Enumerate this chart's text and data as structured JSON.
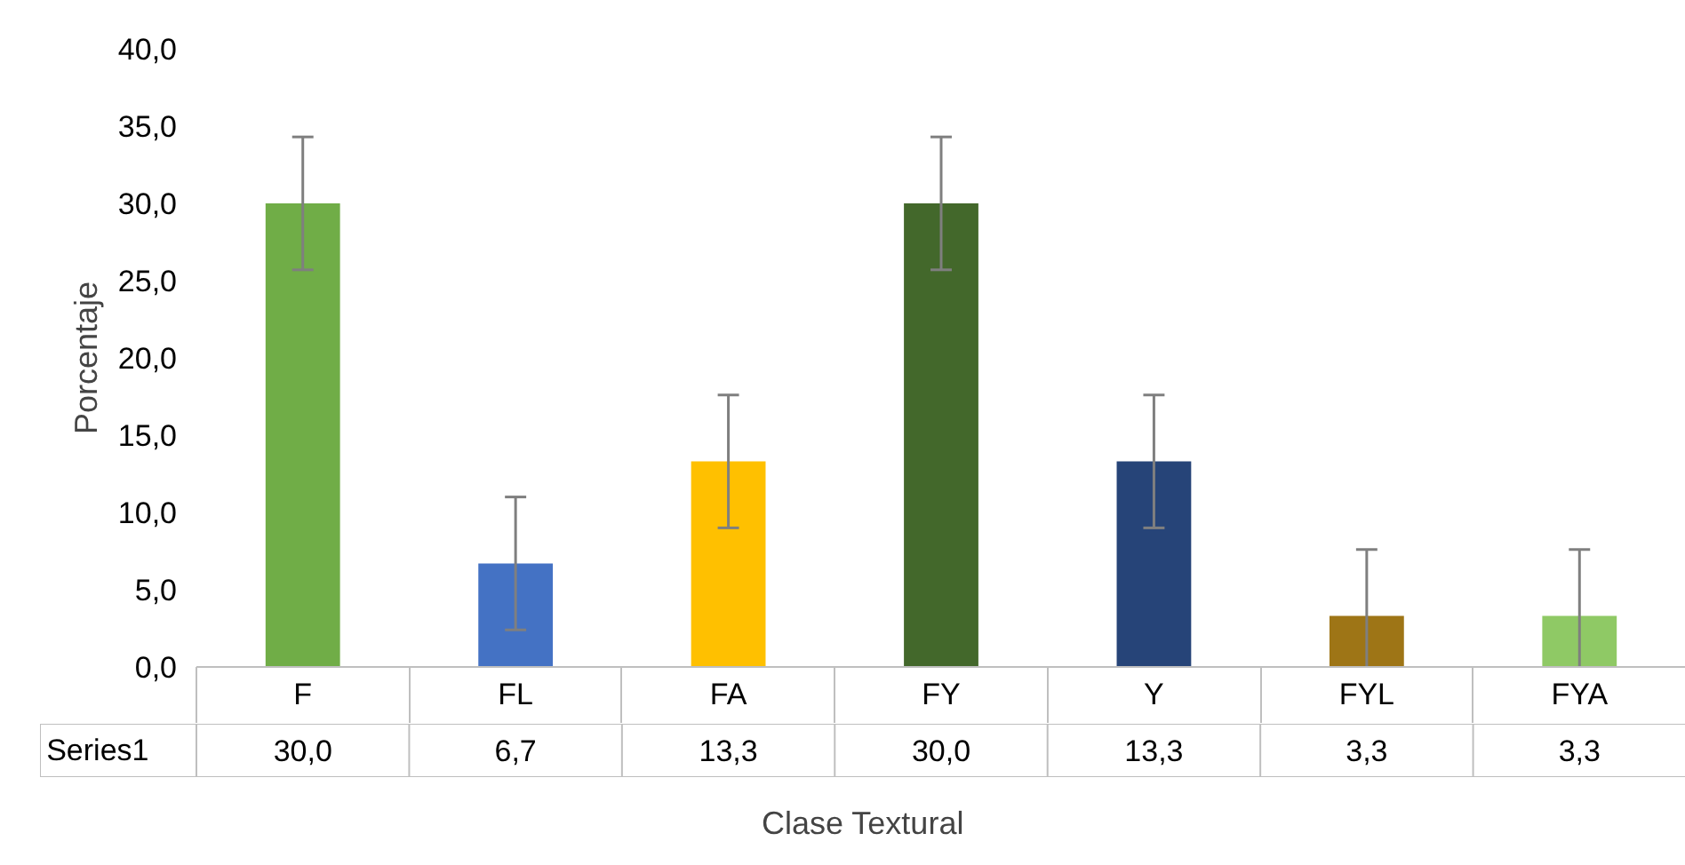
{
  "chart_data": {
    "type": "bar",
    "xlabel": "Clase Textural",
    "ylabel": "Porcentaje",
    "categories": [
      "F",
      "FL",
      "FA",
      "FY",
      "Y",
      "FYL",
      "FYA"
    ],
    "series": [
      {
        "name": "Series1",
        "colors": [
          "#70ad47",
          "#4472c4",
          "#ffc000",
          "#43682b",
          "#264478",
          "#9e7516",
          "#8fc965"
        ],
        "values": [
          30.0,
          6.7,
          13.3,
          30.0,
          13.3,
          3.3,
          3.3
        ],
        "errors": [
          4.3,
          4.3,
          4.3,
          4.3,
          4.3,
          4.3,
          4.3
        ],
        "value_labels": [
          "30,0",
          "6,7",
          "13,3",
          "30,0",
          "13,3",
          "3,3",
          "3,3"
        ]
      }
    ],
    "ylim": [
      0,
      40
    ],
    "yticks": [
      {
        "value": 0,
        "label": "0,0"
      },
      {
        "value": 5,
        "label": "5,0"
      },
      {
        "value": 10,
        "label": "10,0"
      },
      {
        "value": 15,
        "label": "15,0"
      },
      {
        "value": 20,
        "label": "20,0"
      },
      {
        "value": 25,
        "label": "25,0"
      },
      {
        "value": 30,
        "label": "30,0"
      },
      {
        "value": 35,
        "label": "35,0"
      },
      {
        "value": 40,
        "label": "40,0"
      }
    ],
    "grid": false
  }
}
